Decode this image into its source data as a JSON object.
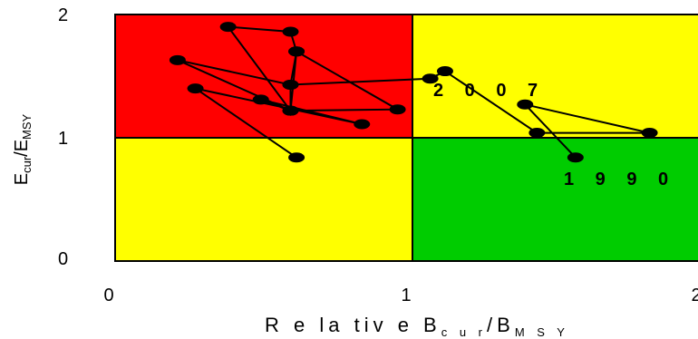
{
  "chart_data": {
    "type": "scatter",
    "connected": true,
    "title": "",
    "xlabel_main": "R e la tiv e  B",
    "xlabel_sub1": "c u r",
    "xlabel_mid": "/B",
    "xlabel_sub2": "M S Y",
    "ylabel_main1": "E",
    "ylabel_sub1": "cur",
    "ylabel_main2": "/E",
    "ylabel_sub2": "MSY",
    "xlim": [
      0,
      2
    ],
    "ylim": [
      0,
      2
    ],
    "x_ticks": [
      "0",
      "1",
      "2"
    ],
    "y_ticks": [
      "0",
      "1",
      "2"
    ],
    "grid": false,
    "zones": {
      "boundary_x": 1,
      "boundary_y": 1,
      "top_left_color": "#ff0000",
      "top_right_color": "#ffff00",
      "bottom_left_color": "#ffff00",
      "bottom_right_color": "#00cc00"
    },
    "line_color": "#000000",
    "marker_color": "#000000",
    "annotations": [
      {
        "text": "2 0 0 7",
        "x": 1.08,
        "y": 1.38
      },
      {
        "text": "1 9 9 0",
        "x": 1.52,
        "y": 0.63
      }
    ],
    "series": [
      {
        "x": [
          1.55,
          1.38,
          1.8,
          1.42,
          1.11,
          1.06,
          0.59,
          0.61,
          0.59,
          0.38,
          0.59,
          0.59,
          0.21,
          0.59,
          0.61,
          0.95,
          0.59,
          0.49,
          0.83,
          0.27,
          0.61
        ],
        "y": [
          0.84,
          1.27,
          1.04,
          1.04,
          1.54,
          1.48,
          1.43,
          1.7,
          1.86,
          1.9,
          1.22,
          1.43,
          1.63,
          1.22,
          1.7,
          1.23,
          1.22,
          1.31,
          1.11,
          1.4,
          0.84
        ]
      }
    ]
  }
}
